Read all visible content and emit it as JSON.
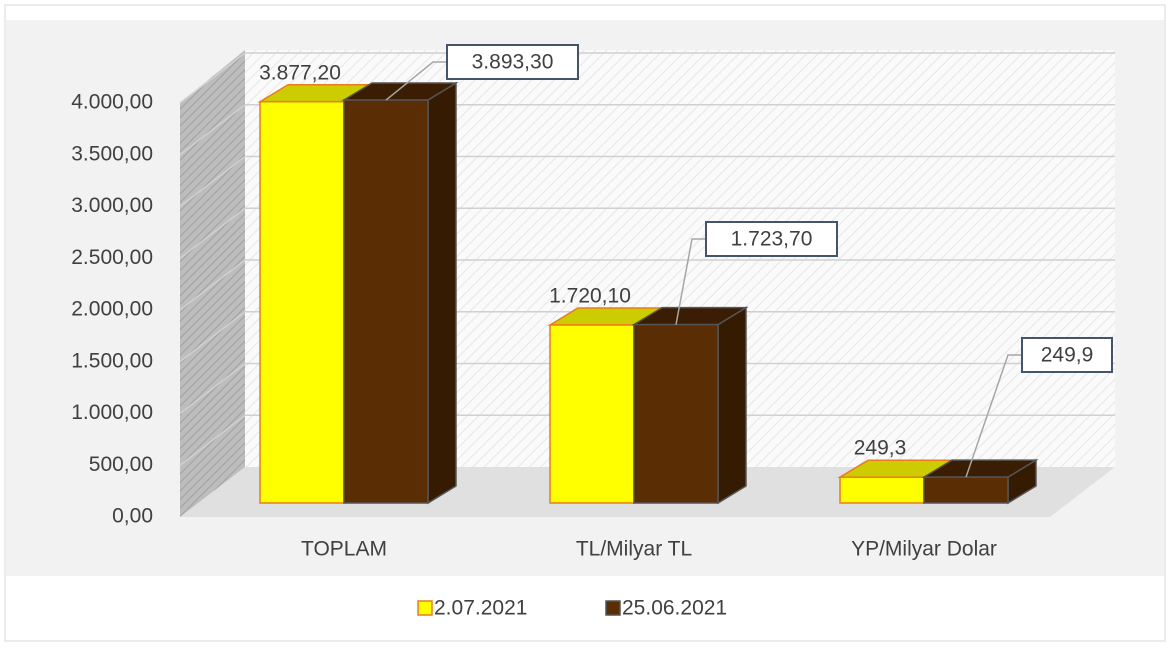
{
  "chart_data": {
    "type": "bar3d",
    "categories": [
      "TOPLAM",
      "TL/Milyar TL",
      "YP/Milyar Dolar"
    ],
    "series": [
      {
        "name": "2.07.2021",
        "color": "#ffff00",
        "values": [
          3877.2,
          1720.1,
          249.3
        ],
        "value_labels": [
          "3.877,20",
          "1.720,10",
          "249,3"
        ]
      },
      {
        "name": "25.06.2021",
        "color": "#5a2d05",
        "values": [
          3893.3,
          1723.7,
          249.9
        ],
        "value_labels": [
          "3.893,30",
          "1.723,70",
          "249,9"
        ]
      }
    ],
    "ylim": [
      0,
      4000
    ],
    "yticks": [
      {
        "value": 0,
        "label": "0,00"
      },
      {
        "value": 500,
        "label": "500,00"
      },
      {
        "value": 1000,
        "label": "1.000,00"
      },
      {
        "value": 1500,
        "label": "1.500,00"
      },
      {
        "value": 2000,
        "label": "2.000,00"
      },
      {
        "value": 2500,
        "label": "2.500,00"
      },
      {
        "value": 3000,
        "label": "3.000,00"
      },
      {
        "value": 3500,
        "label": "3.500,00"
      },
      {
        "value": 4000,
        "label": "4.000,00"
      }
    ],
    "grid": true,
    "legend": "bottom"
  }
}
